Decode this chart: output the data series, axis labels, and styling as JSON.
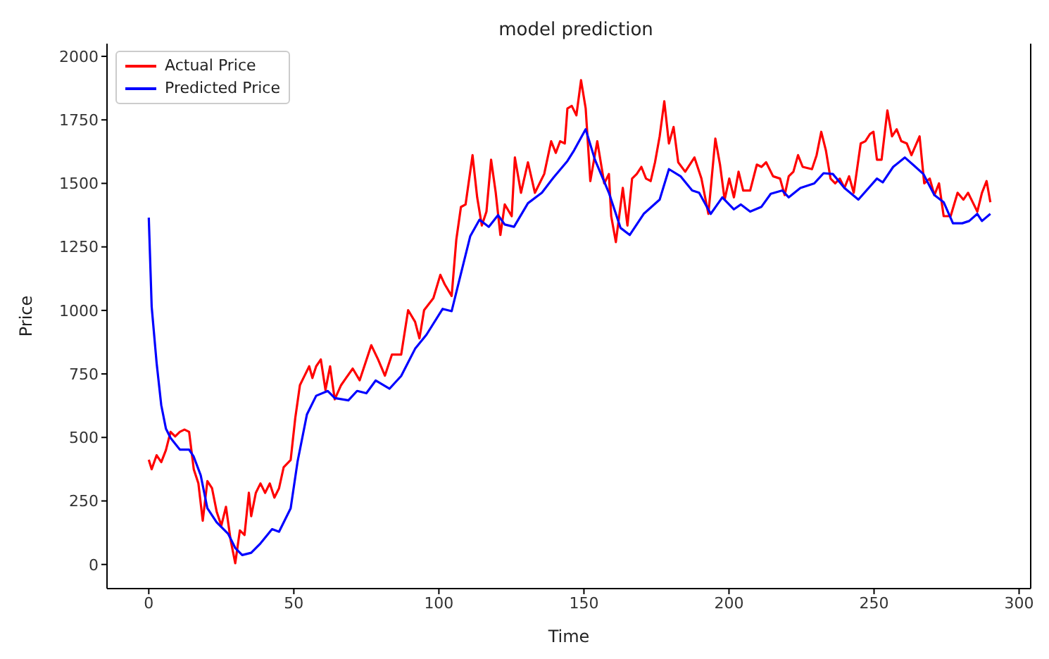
{
  "chart_data": {
    "type": "line",
    "title": "model prediction",
    "xlabel": "Time",
    "ylabel": "Price",
    "xlim": [
      -14.4,
      304
    ],
    "ylim": [
      -95,
      2050
    ],
    "xticks": [
      0,
      50,
      100,
      150,
      200,
      250,
      300
    ],
    "yticks": [
      0,
      250,
      500,
      750,
      1000,
      1250,
      1500,
      1750,
      2000
    ],
    "grid": false,
    "legend": "top left",
    "marker": "none",
    "line_style": "solid",
    "series": [
      {
        "name": "Actual Price",
        "color": "#ff0000",
        "x": [
          0,
          1,
          2.7,
          4.3,
          5.9,
          7.5,
          9.1,
          10.7,
          12.3,
          13.9,
          15.5,
          17.1,
          18.6,
          20.2,
          21.8,
          23.4,
          25,
          26.6,
          28.2,
          29.8,
          31.4,
          33,
          34.5,
          35.3,
          36.9,
          38.5,
          40.1,
          41.7,
          43.3,
          44.9,
          46.5,
          48.9,
          50.5,
          52.1,
          53.7,
          55.3,
          56.4,
          57.7,
          59.3,
          60.9,
          62.5,
          64.1,
          66.3,
          68,
          70.3,
          72.7,
          76.7,
          79,
          81.4,
          83.8,
          87,
          89.4,
          91.8,
          93.3,
          94.9,
          98.1,
          100.5,
          102,
          104.4,
          106,
          107.6,
          109.2,
          111.6,
          113.2,
          114.8,
          116.4,
          118,
          119.6,
          121.2,
          122.7,
          125.1,
          126.2,
          128.3,
          130.7,
          133.1,
          136.3,
          138.7,
          140.3,
          141.8,
          143.4,
          144.3,
          145.8,
          147.4,
          149,
          150.6,
          152.2,
          154.6,
          157,
          158.6,
          159.4,
          161,
          163.4,
          165,
          166.6,
          168.2,
          169.8,
          171.4,
          173,
          174.5,
          176.1,
          177.7,
          179.3,
          180.9,
          182.5,
          184.9,
          188.1,
          190.5,
          192.9,
          195.3,
          196.9,
          198.5,
          200.1,
          201.7,
          203.3,
          204.9,
          207.3,
          209.6,
          211.2,
          212.8,
          215.2,
          217.6,
          219.2,
          220.6,
          222.2,
          223.8,
          225.4,
          228.6,
          230.2,
          231.8,
          233.4,
          235,
          236.6,
          238.2,
          239.8,
          241.4,
          243,
          245.4,
          247,
          248.6,
          249.8,
          251,
          252.6,
          254.6,
          256.2,
          257.8,
          259.4,
          261.3,
          262.9,
          265.7,
          267.3,
          269.2,
          270.8,
          272.4,
          274,
          276.4,
          278.8,
          280.8,
          282.4,
          284,
          285.6,
          287.2,
          288.8,
          290.1
        ],
        "values": [
          412,
          375,
          430,
          403,
          450,
          522,
          504,
          522,
          531,
          522,
          375,
          319,
          172,
          328,
          300,
          208,
          153,
          227,
          97,
          5,
          134,
          116,
          282,
          190,
          282,
          319,
          282,
          319,
          263,
          300,
          383,
          411,
          577,
          706,
          743,
          780,
          734,
          780,
          807,
          687,
          780,
          650,
          706,
          734,
          771,
          725,
          863,
          808,
          743,
          826,
          826,
          1001,
          955,
          890,
          1001,
          1048,
          1140,
          1103,
          1057,
          1278,
          1407,
          1417,
          1611,
          1445,
          1334,
          1389,
          1593,
          1463,
          1297,
          1417,
          1371,
          1602,
          1463,
          1583,
          1463,
          1537,
          1666,
          1620,
          1666,
          1657,
          1795,
          1805,
          1768,
          1906,
          1795,
          1509,
          1666,
          1500,
          1537,
          1371,
          1269,
          1482,
          1334,
          1519,
          1537,
          1565,
          1519,
          1509,
          1583,
          1685,
          1823,
          1657,
          1722,
          1583,
          1546,
          1602,
          1519,
          1380,
          1676,
          1574,
          1436,
          1519,
          1445,
          1546,
          1472,
          1472,
          1574,
          1565,
          1583,
          1528,
          1519,
          1454,
          1528,
          1546,
          1611,
          1565,
          1556,
          1611,
          1703,
          1630,
          1519,
          1500,
          1519,
          1482,
          1528,
          1463,
          1657,
          1666,
          1694,
          1703,
          1593,
          1593,
          1787,
          1685,
          1713,
          1666,
          1657,
          1611,
          1685,
          1500,
          1519,
          1454,
          1500,
          1371,
          1371,
          1463,
          1436,
          1463,
          1426,
          1389,
          1463,
          1509,
          1426
        ]
      },
      {
        "name": "Predicted Price",
        "color": "#0000ff",
        "x": [
          0,
          1,
          2.7,
          4.3,
          5.9,
          7.5,
          10.7,
          13.9,
          15.5,
          17.9,
          20.2,
          23.4,
          27.4,
          29.8,
          32.2,
          35.3,
          38.5,
          42.5,
          44.9,
          48.9,
          51.3,
          54.5,
          57.7,
          61.7,
          64.1,
          68.8,
          71.8,
          75,
          78.2,
          83,
          87,
          91.8,
          95.7,
          101.3,
          104.4,
          107.6,
          110.8,
          114,
          117.2,
          120.4,
          122.7,
          125.9,
          130.7,
          135.5,
          139.5,
          144.3,
          146.6,
          150.6,
          153.8,
          158.6,
          162.6,
          165.8,
          170.6,
          176.1,
          179.3,
          183.3,
          187.3,
          189.7,
          193.7,
          197.7,
          201.7,
          204.1,
          207.3,
          211.2,
          214.4,
          218.4,
          220.6,
          224.6,
          229.4,
          232.6,
          235.8,
          239.8,
          244.6,
          251,
          253,
          256.6,
          260.6,
          263.8,
          267,
          270.8,
          274,
          277.2,
          280.4,
          282.8,
          285.6,
          287.2,
          290.1
        ],
        "values": [
          1365,
          1014,
          793,
          627,
          535,
          498,
          452,
          452,
          424,
          351,
          221,
          166,
          120,
          65,
          37,
          46,
          83,
          139,
          129,
          221,
          406,
          590,
          664,
          683,
          655,
          646,
          683,
          674,
          724,
          692,
          742,
          849,
          904,
          1006,
          997,
          1145,
          1292,
          1357,
          1329,
          1375,
          1338,
          1329,
          1422,
          1463,
          1523,
          1588,
          1630,
          1713,
          1593,
          1463,
          1325,
          1297,
          1380,
          1436,
          1556,
          1528,
          1472,
          1463,
          1380,
          1445,
          1398,
          1417,
          1389,
          1408,
          1459,
          1472,
          1445,
          1482,
          1500,
          1540,
          1537,
          1482,
          1436,
          1519,
          1504,
          1565,
          1602,
          1570,
          1537,
          1454,
          1426,
          1343,
          1343,
          1352,
          1380,
          1352,
          1380
        ]
      }
    ]
  }
}
